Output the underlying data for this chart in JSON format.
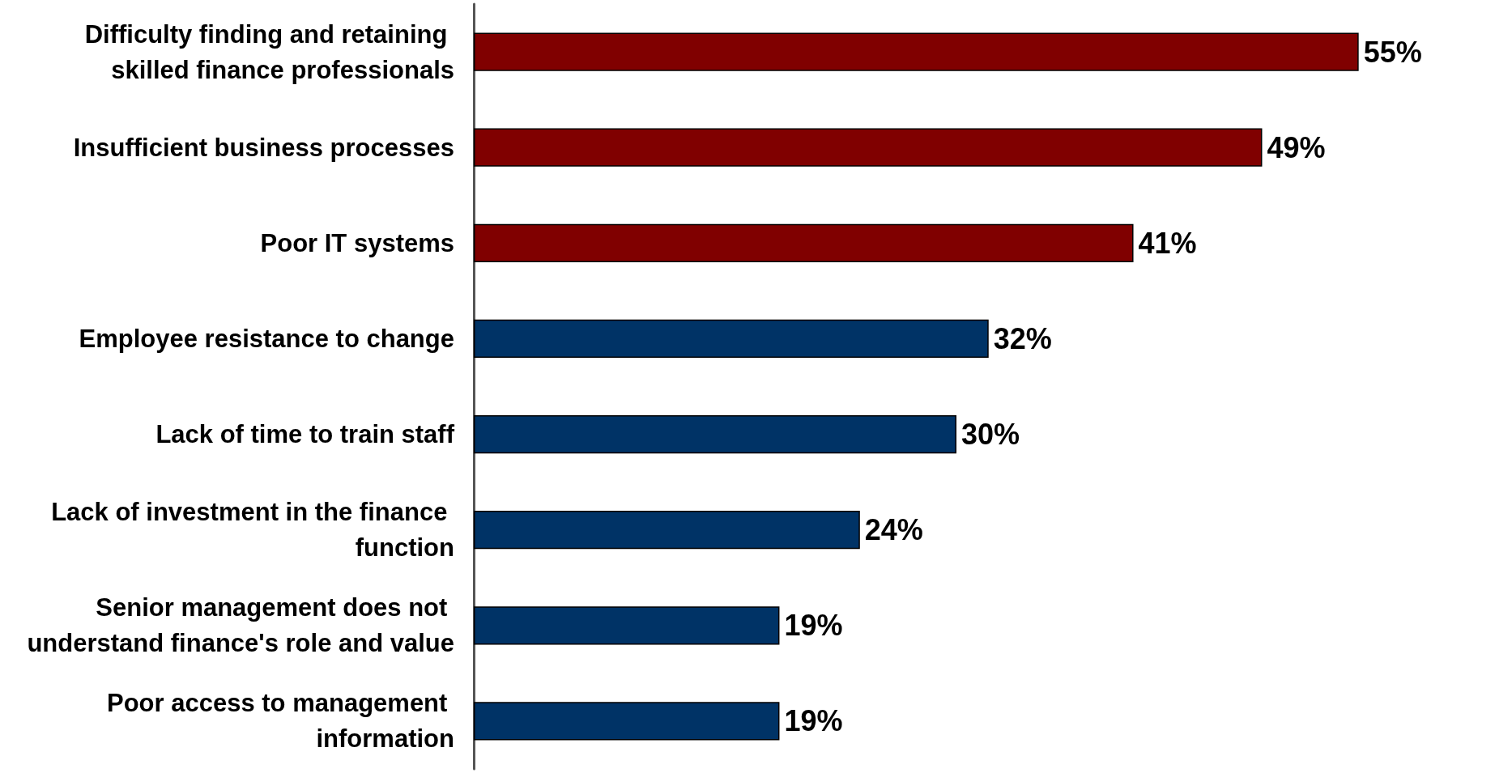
{
  "chart_data": {
    "type": "bar",
    "orientation": "horizontal",
    "categories": [
      "Difficulty finding and retaining skilled finance professionals",
      "Insufficient business processes",
      "Poor IT systems",
      "Employee resistance to change",
      "Lack of time to train staff",
      "Lack of investment in the finance function",
      "Senior management does not understand finance's role and value",
      "Poor access to management information"
    ],
    "values": [
      55,
      49,
      41,
      32,
      30,
      24,
      19,
      19
    ],
    "colors": [
      "#800000",
      "#800000",
      "#800000",
      "#003366",
      "#003366",
      "#003366",
      "#003366",
      "#003366"
    ],
    "value_labels": [
      "55%",
      "49%",
      "41%",
      "32%",
      "30%",
      "24%",
      "19%",
      "19%"
    ]
  }
}
